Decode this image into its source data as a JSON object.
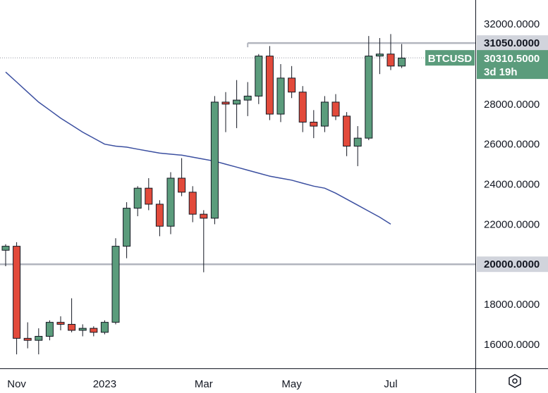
{
  "chart_data": {
    "type": "candlestick",
    "symbol": "BTCUSD",
    "countdown": "3d 19h",
    "last_price": 30310.5,
    "last_price_label": "30310.5000",
    "ylim": [
      14800,
      33200
    ],
    "y_ticks": [
      "16000.0000",
      "18000.0000",
      "20000.0000",
      "22000.0000",
      "24000.0000",
      "26000.0000",
      "28000.0000",
      "30000.0000",
      "32000.0000"
    ],
    "y_tick_values": [
      16000,
      18000,
      20000,
      22000,
      24000,
      26000,
      28000,
      30000,
      32000
    ],
    "x_labels": [
      "Nov",
      "2023",
      "Mar",
      "May",
      "Jul"
    ],
    "x_label_index": [
      1,
      9,
      18,
      26,
      35
    ],
    "levels": [
      {
        "value": 31050,
        "label": "31050.0000",
        "from_index": 22
      },
      {
        "value": 20000,
        "label": "20000.0000",
        "from_index": -1
      }
    ],
    "ma": [
      29600,
      29100,
      28600,
      28100,
      27700,
      27300,
      26950,
      26600,
      26300,
      26000,
      25900,
      25850,
      25750,
      25650,
      25550,
      25500,
      25450,
      25350,
      25250,
      25150,
      25000,
      24850,
      24700,
      24550,
      24400,
      24300,
      24200,
      24050,
      23900,
      23800,
      23550,
      23250,
      22950,
      22650,
      22350,
      22000
    ],
    "candles": [
      {
        "o": 20700,
        "h": 21000,
        "l": 19900,
        "c": 20900
      },
      {
        "o": 20900,
        "h": 21100,
        "l": 15500,
        "c": 16300
      },
      {
        "o": 16300,
        "h": 17100,
        "l": 15800,
        "c": 16200
      },
      {
        "o": 16200,
        "h": 16800,
        "l": 15500,
        "c": 16400
      },
      {
        "o": 16400,
        "h": 17200,
        "l": 16200,
        "c": 17100
      },
      {
        "o": 17100,
        "h": 17400,
        "l": 16700,
        "c": 17000
      },
      {
        "o": 17000,
        "h": 18300,
        "l": 16600,
        "c": 16700
      },
      {
        "o": 16700,
        "h": 17000,
        "l": 16400,
        "c": 16800
      },
      {
        "o": 16800,
        "h": 16900,
        "l": 16400,
        "c": 16600
      },
      {
        "o": 16600,
        "h": 17200,
        "l": 16500,
        "c": 17100
      },
      {
        "o": 17100,
        "h": 21300,
        "l": 17000,
        "c": 20900
      },
      {
        "o": 20900,
        "h": 23100,
        "l": 20300,
        "c": 22800
      },
      {
        "o": 22800,
        "h": 23900,
        "l": 22400,
        "c": 23800
      },
      {
        "o": 23800,
        "h": 24300,
        "l": 22700,
        "c": 23000
      },
      {
        "o": 23000,
        "h": 23200,
        "l": 21400,
        "c": 21900
      },
      {
        "o": 21900,
        "h": 24600,
        "l": 21500,
        "c": 24300
      },
      {
        "o": 24300,
        "h": 25300,
        "l": 23400,
        "c": 23600
      },
      {
        "o": 23600,
        "h": 23900,
        "l": 22100,
        "c": 22500
      },
      {
        "o": 22500,
        "h": 22700,
        "l": 19600,
        "c": 22300
      },
      {
        "o": 22300,
        "h": 28400,
        "l": 22000,
        "c": 28100
      },
      {
        "o": 28100,
        "h": 28600,
        "l": 26600,
        "c": 28000
      },
      {
        "o": 28000,
        "h": 29200,
        "l": 26800,
        "c": 28200
      },
      {
        "o": 28200,
        "h": 29100,
        "l": 27400,
        "c": 28400
      },
      {
        "o": 28400,
        "h": 30500,
        "l": 28000,
        "c": 30400
      },
      {
        "o": 30400,
        "h": 30900,
        "l": 27200,
        "c": 27500
      },
      {
        "o": 27500,
        "h": 30000,
        "l": 27100,
        "c": 29300
      },
      {
        "o": 29300,
        "h": 29900,
        "l": 28300,
        "c": 28600
      },
      {
        "o": 28600,
        "h": 28900,
        "l": 26600,
        "c": 27100
      },
      {
        "o": 27100,
        "h": 27700,
        "l": 26300,
        "c": 26900
      },
      {
        "o": 26900,
        "h": 28400,
        "l": 26600,
        "c": 28100
      },
      {
        "o": 28100,
        "h": 28500,
        "l": 27200,
        "c": 27400
      },
      {
        "o": 27400,
        "h": 27600,
        "l": 25400,
        "c": 25900
      },
      {
        "o": 25900,
        "h": 26900,
        "l": 24900,
        "c": 26300
      },
      {
        "o": 26300,
        "h": 31400,
        "l": 26200,
        "c": 30400
      },
      {
        "o": 30400,
        "h": 31300,
        "l": 29500,
        "c": 30500
      },
      {
        "o": 30500,
        "h": 31500,
        "l": 29700,
        "c": 29900
      },
      {
        "o": 29900,
        "h": 31000,
        "l": 29800,
        "c": 30300
      }
    ],
    "colors": {
      "up": "#5b9c7c",
      "down": "#e24a3b",
      "wick": "#131722",
      "ma": "#3b4fa0",
      "level": "#b2b5be",
      "axis": "#131722",
      "tag_symbol": "#5b9c7c",
      "tag_level": "#d1d4dc",
      "grid_dot": "#9598a1"
    }
  },
  "ui": {
    "settings_icon": "hexagon-settings-icon"
  }
}
